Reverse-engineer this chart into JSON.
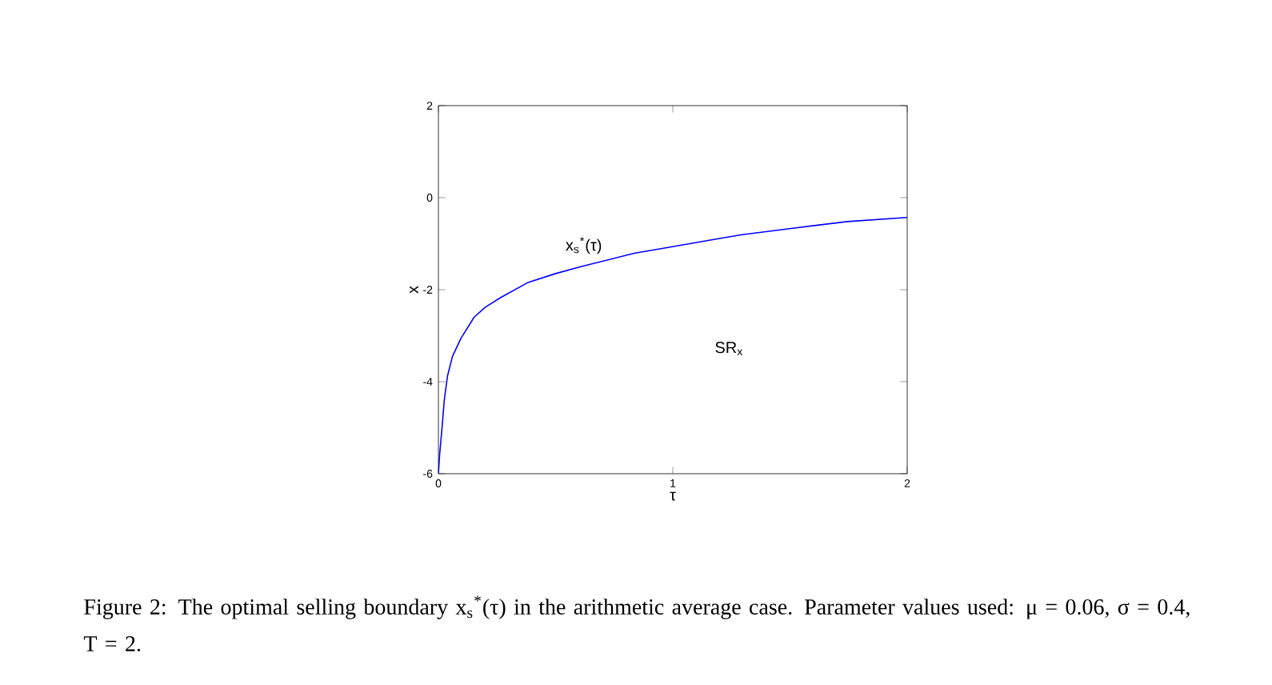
{
  "chart_data": {
    "type": "line",
    "xlabel": "τ",
    "ylabel": "x",
    "x": [
      0,
      0.005,
      0.016,
      0.025,
      0.039,
      0.06,
      0.096,
      0.152,
      0.2,
      0.266,
      0.38,
      0.5,
      0.607,
      0.835,
      0.994,
      1.15,
      1.29,
      1.518,
      1.745,
      2
    ],
    "series": [
      {
        "color": "#0000ff",
        "values": [
          -6,
          -5.6,
          -4.97,
          -4.4,
          -3.87,
          -3.45,
          -3.06,
          -2.6,
          -2.38,
          -2.17,
          -1.85,
          -1.65,
          -1.5,
          -1.21,
          -1.07,
          -0.93,
          -0.81,
          -0.66,
          -0.52,
          -0.43
        ]
      }
    ],
    "xlim": [
      0,
      2
    ],
    "ylim": [
      -6,
      2
    ],
    "xticks": [
      0,
      1,
      2
    ],
    "yticks": [
      -6,
      -4,
      -2,
      0,
      2
    ],
    "grid": false,
    "marker": "none",
    "line_style": "solid",
    "annotations": [
      "x$_{s}$$^{*}$(τ)",
      "SR$_{x}$",
      "Figure 2: The optimal selling boundary x$_{s}$$^{*}$(τ) in the arithmetic average case. Parameter values used: μ = 0.06, σ = 0.4, T = 2."
    ]
  }
}
